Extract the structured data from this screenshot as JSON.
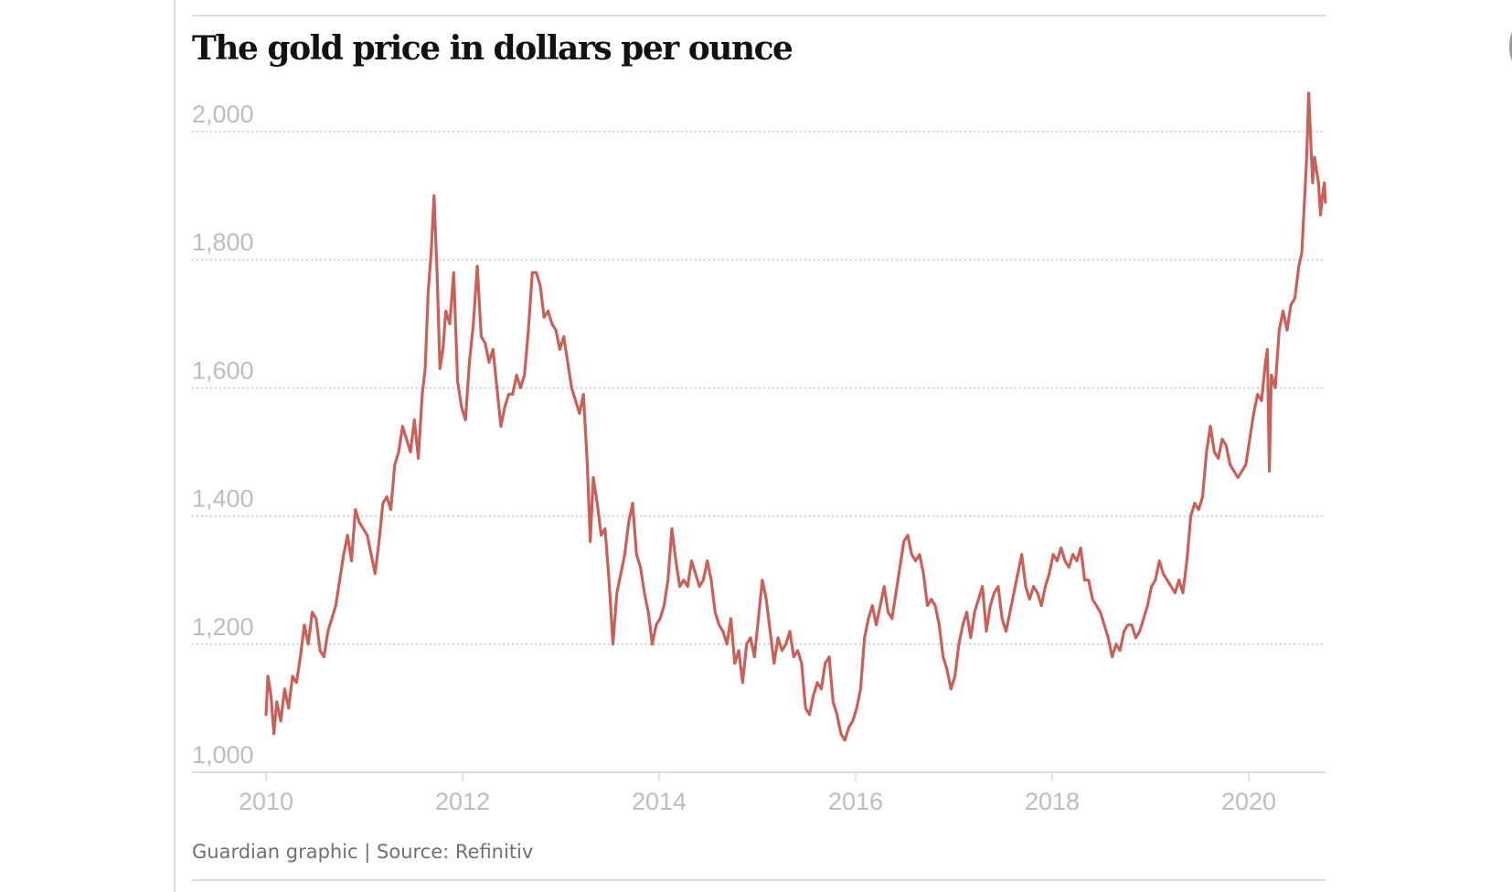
{
  "header": {
    "title": "The gold price in dollars per ounce"
  },
  "footer": {
    "credit": "Guardian graphic | Source: Refinitiv"
  },
  "colors": {
    "line": "#c8615a",
    "grid": "#c8c8c8",
    "axis": "#dcdcdc",
    "tick_label": "#bdbdbd",
    "title": "#121212",
    "footer": "#707070"
  },
  "chart_data": {
    "type": "line",
    "title": "The gold price in dollars per ounce",
    "xlabel": "",
    "ylabel": "",
    "source": "Guardian graphic | Source: Refinitiv",
    "xlim": [
      2009.6,
      2020.8
    ],
    "ylim": [
      1000,
      2000
    ],
    "grid": true,
    "legend": "none",
    "x_ticks": [
      2010,
      2012,
      2014,
      2016,
      2018,
      2020
    ],
    "x_tick_labels": [
      "2010",
      "2012",
      "2014",
      "2016",
      "2018",
      "2020"
    ],
    "y_ticks": [
      1000,
      1200,
      1400,
      1600,
      1800,
      2000
    ],
    "y_tick_labels": [
      "1,000",
      "1,200",
      "1,400",
      "1,600",
      "1,800",
      "2,000"
    ],
    "series": [
      {
        "name": "Gold price (USD/oz)",
        "x": [
          2010.0,
          2010.02,
          2010.05,
          2010.08,
          2010.11,
          2010.15,
          2010.19,
          2010.23,
          2010.27,
          2010.31,
          2010.35,
          2010.39,
          2010.43,
          2010.47,
          2010.51,
          2010.55,
          2010.59,
          2010.63,
          2010.67,
          2010.71,
          2010.75,
          2010.79,
          2010.83,
          2010.87,
          2010.91,
          2010.95,
          2010.99,
          2011.03,
          2011.07,
          2011.11,
          2011.15,
          2011.19,
          2011.23,
          2011.27,
          2011.31,
          2011.35,
          2011.39,
          2011.43,
          2011.47,
          2011.51,
          2011.55,
          2011.59,
          2011.62,
          2011.65,
          2011.68,
          2011.71,
          2011.74,
          2011.77,
          2011.8,
          2011.83,
          2011.87,
          2011.91,
          2011.95,
          2011.99,
          2012.03,
          2012.07,
          2012.11,
          2012.15,
          2012.19,
          2012.23,
          2012.27,
          2012.31,
          2012.35,
          2012.39,
          2012.43,
          2012.47,
          2012.51,
          2012.55,
          2012.59,
          2012.63,
          2012.67,
          2012.71,
          2012.75,
          2012.79,
          2012.83,
          2012.87,
          2012.91,
          2012.95,
          2012.99,
          2013.03,
          2013.07,
          2013.11,
          2013.15,
          2013.19,
          2013.23,
          2013.27,
          2013.3,
          2013.33,
          2013.37,
          2013.41,
          2013.45,
          2013.49,
          2013.53,
          2013.57,
          2013.61,
          2013.65,
          2013.69,
          2013.73,
          2013.77,
          2013.81,
          2013.85,
          2013.89,
          2013.93,
          2013.97,
          2014.01,
          2014.05,
          2014.09,
          2014.13,
          2014.17,
          2014.21,
          2014.25,
          2014.29,
          2014.33,
          2014.37,
          2014.41,
          2014.45,
          2014.49,
          2014.53,
          2014.57,
          2014.61,
          2014.65,
          2014.69,
          2014.73,
          2014.77,
          2014.81,
          2014.85,
          2014.89,
          2014.93,
          2014.97,
          2015.01,
          2015.05,
          2015.09,
          2015.13,
          2015.17,
          2015.21,
          2015.25,
          2015.29,
          2015.33,
          2015.37,
          2015.41,
          2015.45,
          2015.49,
          2015.53,
          2015.57,
          2015.61,
          2015.65,
          2015.69,
          2015.73,
          2015.77,
          2015.81,
          2015.85,
          2015.89,
          2015.93,
          2015.97,
          2016.01,
          2016.05,
          2016.09,
          2016.13,
          2016.17,
          2016.21,
          2016.25,
          2016.29,
          2016.33,
          2016.37,
          2016.41,
          2016.45,
          2016.49,
          2016.53,
          2016.57,
          2016.61,
          2016.65,
          2016.69,
          2016.73,
          2016.77,
          2016.81,
          2016.85,
          2016.89,
          2016.93,
          2016.97,
          2017.01,
          2017.05,
          2017.09,
          2017.13,
          2017.17,
          2017.21,
          2017.25,
          2017.29,
          2017.33,
          2017.37,
          2017.41,
          2017.45,
          2017.49,
          2017.53,
          2017.57,
          2017.61,
          2017.65,
          2017.69,
          2017.73,
          2017.77,
          2017.81,
          2017.85,
          2017.89,
          2017.93,
          2017.97,
          2018.01,
          2018.05,
          2018.09,
          2018.13,
          2018.17,
          2018.21,
          2018.25,
          2018.29,
          2018.33,
          2018.37,
          2018.41,
          2018.45,
          2018.49,
          2018.53,
          2018.57,
          2018.61,
          2018.65,
          2018.69,
          2018.73,
          2018.77,
          2018.81,
          2018.85,
          2018.89,
          2018.93,
          2018.97,
          2019.01,
          2019.05,
          2019.09,
          2019.13,
          2019.17,
          2019.21,
          2019.25,
          2019.29,
          2019.33,
          2019.37,
          2019.41,
          2019.45,
          2019.49,
          2019.53,
          2019.57,
          2019.61,
          2019.65,
          2019.69,
          2019.73,
          2019.77,
          2019.81,
          2019.85,
          2019.89,
          2019.93,
          2019.97,
          2020.01,
          2020.05,
          2020.09,
          2020.13,
          2020.17,
          2020.19,
          2020.21,
          2020.23,
          2020.27,
          2020.31,
          2020.35,
          2020.39,
          2020.43,
          2020.47,
          2020.51,
          2020.54,
          2020.57,
          2020.59,
          2020.61,
          2020.63,
          2020.65,
          2020.67,
          2020.69,
          2020.71,
          2020.73,
          2020.75,
          2020.77,
          2020.78
        ],
        "values": [
          1090,
          1150,
          1120,
          1060,
          1110,
          1080,
          1130,
          1100,
          1150,
          1140,
          1180,
          1230,
          1200,
          1250,
          1240,
          1190,
          1180,
          1220,
          1240,
          1260,
          1300,
          1340,
          1370,
          1330,
          1410,
          1390,
          1380,
          1370,
          1340,
          1310,
          1360,
          1420,
          1430,
          1410,
          1480,
          1500,
          1540,
          1520,
          1500,
          1550,
          1490,
          1590,
          1630,
          1750,
          1810,
          1900,
          1780,
          1630,
          1660,
          1720,
          1700,
          1780,
          1610,
          1570,
          1550,
          1640,
          1700,
          1790,
          1680,
          1670,
          1640,
          1660,
          1600,
          1540,
          1570,
          1590,
          1590,
          1620,
          1600,
          1620,
          1690,
          1780,
          1780,
          1760,
          1710,
          1720,
          1700,
          1690,
          1660,
          1680,
          1640,
          1600,
          1580,
          1560,
          1590,
          1480,
          1360,
          1460,
          1420,
          1370,
          1380,
          1300,
          1200,
          1280,
          1310,
          1340,
          1390,
          1420,
          1340,
          1320,
          1280,
          1250,
          1200,
          1230,
          1240,
          1260,
          1300,
          1380,
          1330,
          1290,
          1300,
          1290,
          1330,
          1310,
          1290,
          1300,
          1330,
          1300,
          1250,
          1230,
          1220,
          1200,
          1240,
          1170,
          1190,
          1140,
          1200,
          1210,
          1180,
          1240,
          1300,
          1270,
          1220,
          1170,
          1210,
          1190,
          1200,
          1220,
          1180,
          1190,
          1170,
          1100,
          1090,
          1120,
          1140,
          1130,
          1170,
          1180,
          1110,
          1090,
          1060,
          1050,
          1070,
          1080,
          1100,
          1130,
          1210,
          1240,
          1260,
          1230,
          1260,
          1290,
          1250,
          1240,
          1280,
          1320,
          1360,
          1370,
          1340,
          1330,
          1340,
          1310,
          1260,
          1270,
          1260,
          1230,
          1180,
          1160,
          1130,
          1150,
          1200,
          1230,
          1250,
          1210,
          1250,
          1270,
          1290,
          1220,
          1260,
          1280,
          1290,
          1240,
          1220,
          1250,
          1280,
          1310,
          1340,
          1290,
          1270,
          1290,
          1280,
          1260,
          1290,
          1310,
          1340,
          1330,
          1350,
          1330,
          1320,
          1340,
          1330,
          1350,
          1300,
          1300,
          1270,
          1260,
          1250,
          1230,
          1210,
          1180,
          1200,
          1190,
          1220,
          1230,
          1230,
          1210,
          1220,
          1240,
          1260,
          1290,
          1300,
          1330,
          1310,
          1300,
          1290,
          1280,
          1300,
          1280,
          1330,
          1400,
          1420,
          1410,
          1430,
          1500,
          1540,
          1500,
          1490,
          1520,
          1510,
          1480,
          1470,
          1460,
          1470,
          1480,
          1520,
          1560,
          1590,
          1580,
          1640,
          1660,
          1470,
          1620,
          1600,
          1690,
          1720,
          1690,
          1730,
          1740,
          1790,
          1810,
          1900,
          1960,
          2060,
          1990,
          1920,
          1960,
          1940,
          1920,
          1870,
          1900,
          1920,
          1890
        ]
      }
    ]
  }
}
